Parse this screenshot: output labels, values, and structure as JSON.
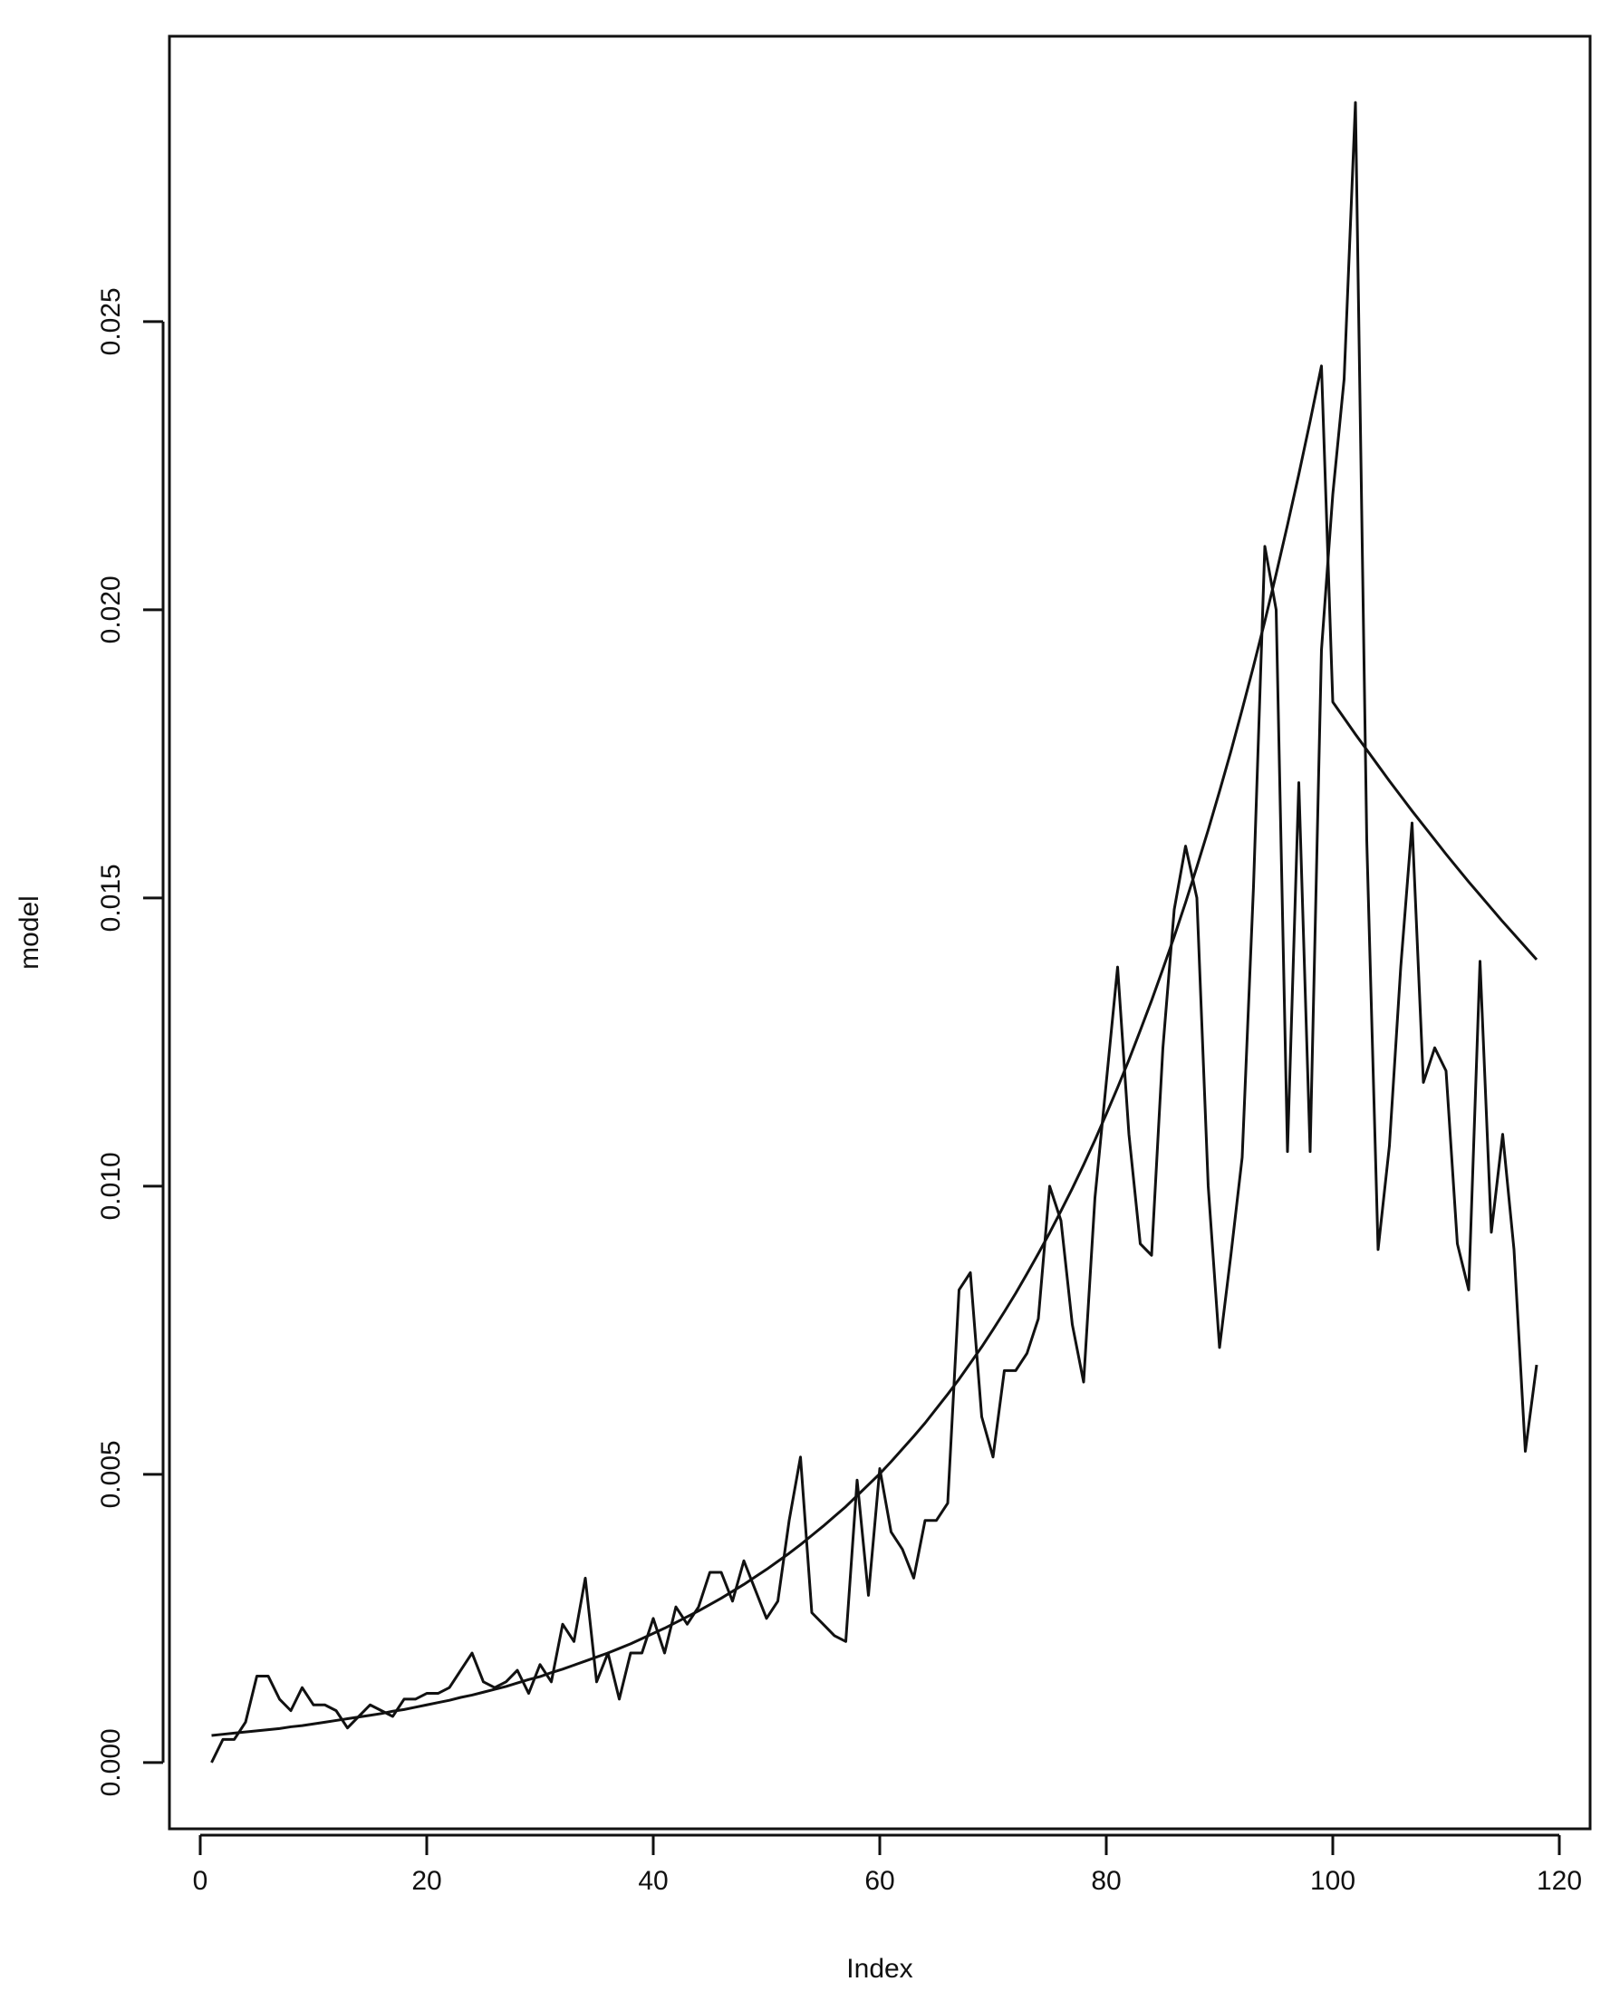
{
  "chart_data": {
    "type": "line",
    "title": "",
    "xlabel": "Index",
    "ylabel": "model",
    "xlim": [
      -2.72,
      122.72
    ],
    "ylim": [
      -0.00115,
      0.02995
    ],
    "x_ticks": [
      0,
      20,
      40,
      60,
      80,
      100,
      120
    ],
    "x_tick_labels": [
      "0",
      "20",
      "40",
      "60",
      "80",
      "100",
      "120"
    ],
    "y_ticks": [
      0.0,
      0.005,
      0.01,
      0.015,
      0.02,
      0.025
    ],
    "y_tick_labels": [
      "0.000",
      "0.005",
      "0.010",
      "0.015",
      "0.020",
      "0.025"
    ],
    "grid": false,
    "legend": "none",
    "line_color": "#111111",
    "series": [
      {
        "values": [
          0.0,
          0.0004,
          0.0004,
          0.0007,
          0.0015,
          0.0015,
          0.0011,
          0.0009,
          0.0013,
          0.001,
          0.001,
          0.0009,
          0.0006,
          0.0008,
          0.001,
          0.0009,
          0.0008,
          0.0011,
          0.0011,
          0.0012,
          0.0012,
          0.0013,
          0.0016,
          0.0019,
          0.0014,
          0.0013,
          0.0014,
          0.0016,
          0.0012,
          0.0017,
          0.0014,
          0.0024,
          0.0021,
          0.0032,
          0.0014,
          0.0019,
          0.0011,
          0.0019,
          0.0019,
          0.0025,
          0.0019,
          0.0027,
          0.0024,
          0.0027,
          0.0033,
          0.0033,
          0.0028,
          0.0035,
          0.003,
          0.0025,
          0.0028,
          0.0042,
          0.0053,
          0.0026,
          0.0024,
          0.0022,
          0.0021,
          0.0049,
          0.0029,
          0.0051,
          0.004,
          0.0037,
          0.0032,
          0.0042,
          0.0042,
          0.0045,
          0.0082,
          0.0085,
          0.006,
          0.0053,
          0.0068,
          0.0068,
          0.0071,
          0.0077,
          0.01,
          0.0094,
          0.0076,
          0.0066,
          0.0098,
          0.0118,
          0.0138,
          0.0109,
          0.009,
          0.0088,
          0.0124,
          0.0148,
          0.0159,
          0.015,
          0.01,
          0.0072,
          0.0088,
          0.0105,
          0.0152,
          0.0211,
          0.02,
          0.0106,
          0.017,
          0.0106,
          0.0193,
          0.022,
          0.024,
          0.0288,
          0.016,
          0.0089,
          0.0107,
          0.0138,
          0.0163,
          0.0118,
          0.0124,
          0.012,
          0.009,
          0.0082,
          0.0139,
          0.0092,
          0.0109,
          0.0089,
          0.0054,
          0.0069
        ]
      },
      {
        "values": [
          0.00047,
          0.00049,
          0.00051,
          0.00053,
          0.00055,
          0.00057,
          0.00059,
          0.00062,
          0.00064,
          0.00067,
          0.0007,
          0.00073,
          0.00076,
          0.00079,
          0.00082,
          0.00085,
          0.00089,
          0.00092,
          0.00096,
          0.001,
          0.00104,
          0.00108,
          0.00113,
          0.00117,
          0.00122,
          0.00127,
          0.00132,
          0.00138,
          0.00144,
          0.00149,
          0.00156,
          0.00162,
          0.00169,
          0.00176,
          0.00183,
          0.0019,
          0.00198,
          0.00206,
          0.00215,
          0.00224,
          0.00233,
          0.00243,
          0.00253,
          0.00263,
          0.00274,
          0.00285,
          0.00297,
          0.00309,
          0.00322,
          0.00335,
          0.00349,
          0.00363,
          0.00378,
          0.00394,
          0.0041,
          0.00427,
          0.00444,
          0.00463,
          0.00482,
          0.00501,
          0.00522,
          0.00544,
          0.00566,
          0.00589,
          0.00614,
          0.00639,
          0.00665,
          0.00693,
          0.00721,
          0.00751,
          0.00782,
          0.00814,
          0.00848,
          0.00883,
          0.00919,
          0.00957,
          0.00996,
          0.01037,
          0.0108,
          0.01125,
          0.01171,
          0.01219,
          0.0127,
          0.01322,
          0.01377,
          0.01433,
          0.01492,
          0.01554,
          0.01618,
          0.01685,
          0.01754,
          0.01827,
          0.01902,
          0.0198,
          0.02062,
          0.02147,
          0.02235,
          0.02327,
          0.02423,
          0.0184,
          0.01812,
          0.01784,
          0.01757,
          0.0173,
          0.01703,
          0.01677,
          0.01651,
          0.01626,
          0.01601,
          0.01576,
          0.01552,
          0.01528,
          0.01505,
          0.01482,
          0.01459,
          0.01437,
          0.01415,
          0.01393
        ]
      }
    ]
  }
}
